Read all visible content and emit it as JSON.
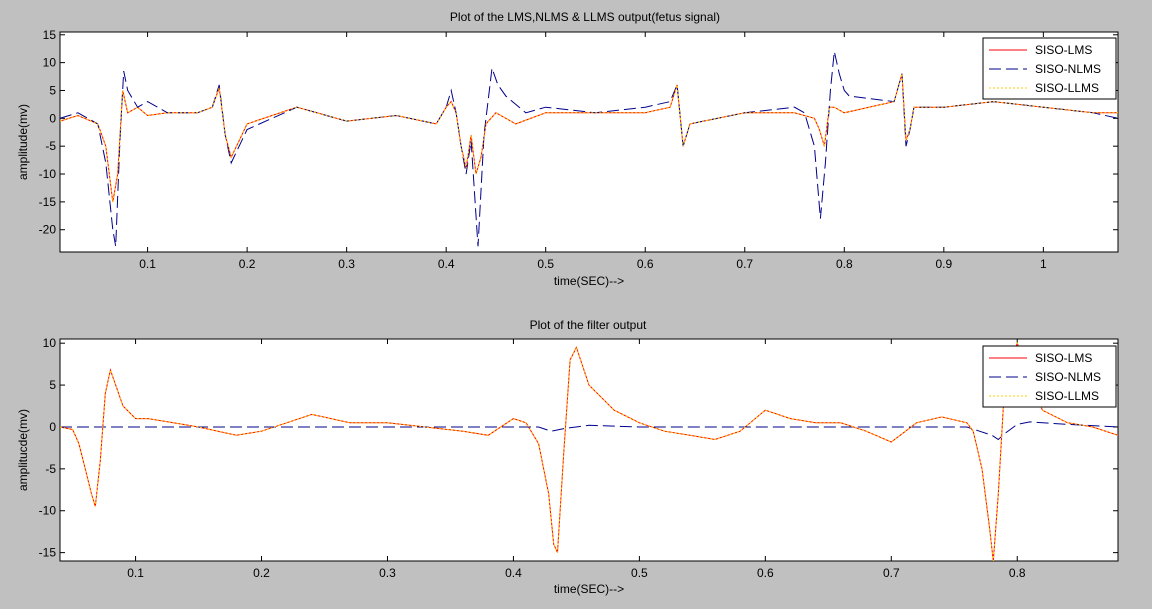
{
  "figure": {
    "background": "#c0c0c0"
  },
  "chart_data": [
    {
      "type": "line",
      "title": "Plot of the LMS,NLMS & LLMS output(fetus signal)",
      "xlabel": "time(SEC)-->",
      "ylabel": "amplitude(mv)",
      "xlim": [
        0.012,
        1.075
      ],
      "ylim": [
        -24,
        15.5
      ],
      "xticks": [
        0.1,
        0.2,
        0.3,
        0.4,
        0.5,
        0.6,
        0.7,
        0.8,
        0.9,
        1
      ],
      "xticklabels": [
        "0.1",
        "0.2",
        "0.3",
        "0.4",
        "0.5",
        "0.6",
        "0.7",
        "0.8",
        "0.9",
        "1"
      ],
      "yticks": [
        15,
        10,
        5,
        0,
        -5,
        -10,
        -15,
        -20
      ],
      "yticklabels": [
        "15",
        "10",
        "5",
        "0",
        "-5",
        "-10",
        "-15",
        "-20"
      ],
      "grid": false,
      "legend_position": "top-right",
      "series": [
        {
          "name": "SISO-LMS",
          "color": "#ff0000",
          "dash": "solid",
          "x": [
            0.012,
            0.03,
            0.05,
            0.058,
            0.065,
            0.07,
            0.075,
            0.08,
            0.09,
            0.1,
            0.12,
            0.15,
            0.165,
            0.172,
            0.178,
            0.184,
            0.2,
            0.25,
            0.3,
            0.35,
            0.39,
            0.4,
            0.405,
            0.41,
            0.415,
            0.42,
            0.425,
            0.43,
            0.435,
            0.44,
            0.45,
            0.47,
            0.5,
            0.55,
            0.6,
            0.625,
            0.632,
            0.638,
            0.645,
            0.7,
            0.75,
            0.77,
            0.775,
            0.78,
            0.785,
            0.79,
            0.8,
            0.85,
            0.858,
            0.862,
            0.866,
            0.87,
            0.9,
            0.95,
            1,
            1.05,
            1.075
          ],
          "y": [
            -0.5,
            0.5,
            -1,
            -5,
            -15,
            -10,
            5,
            1,
            2,
            0.5,
            1,
            1,
            2,
            5.5,
            -3,
            -7,
            -1,
            2,
            -0.5,
            0.5,
            -1,
            2,
            3,
            1,
            -5,
            -9,
            -3,
            -10,
            -7,
            -1,
            1,
            -1,
            1,
            1,
            1,
            2,
            6,
            -5,
            -1,
            1,
            1,
            0,
            -2,
            -5,
            2,
            2,
            1,
            3,
            8,
            -4,
            -2,
            2,
            2,
            3,
            2,
            1,
            1
          ]
        },
        {
          "name": "SISO-NLMS",
          "color": "#00008b",
          "dash": "long-dash",
          "x": [
            0.012,
            0.03,
            0.05,
            0.058,
            0.065,
            0.068,
            0.072,
            0.076,
            0.08,
            0.09,
            0.1,
            0.12,
            0.15,
            0.165,
            0.172,
            0.178,
            0.184,
            0.2,
            0.25,
            0.3,
            0.35,
            0.39,
            0.4,
            0.405,
            0.41,
            0.415,
            0.42,
            0.425,
            0.432,
            0.438,
            0.442,
            0.446,
            0.452,
            0.46,
            0.48,
            0.5,
            0.55,
            0.6,
            0.625,
            0.632,
            0.638,
            0.645,
            0.7,
            0.75,
            0.76,
            0.77,
            0.776,
            0.781,
            0.786,
            0.79,
            0.795,
            0.8,
            0.805,
            0.85,
            0.858,
            0.862,
            0.866,
            0.87,
            0.9,
            0.95,
            1,
            1.05,
            1.075
          ],
          "y": [
            0,
            1,
            -1,
            -8,
            -20,
            -23,
            -5,
            8.5,
            5,
            2,
            3,
            1,
            1,
            2,
            6,
            -3,
            -8,
            -2,
            2,
            -0.5,
            0.5,
            -1,
            2,
            5,
            1,
            -5,
            -10,
            -4,
            -23,
            -3,
            3,
            9,
            6,
            4,
            1,
            2,
            1,
            2,
            3,
            6,
            -5,
            -1,
            1,
            2,
            1,
            -5,
            -18,
            -8,
            5,
            12,
            8,
            5,
            4,
            3,
            8,
            -5,
            -2,
            2,
            2,
            3,
            2,
            1,
            0
          ]
        },
        {
          "name": "SISO-LLMS",
          "color": "#ffcc00",
          "dash": "dotted",
          "x": [
            0.012,
            0.03,
            0.05,
            0.058,
            0.065,
            0.07,
            0.075,
            0.08,
            0.09,
            0.1,
            0.12,
            0.15,
            0.165,
            0.172,
            0.178,
            0.184,
            0.2,
            0.25,
            0.3,
            0.35,
            0.39,
            0.4,
            0.405,
            0.41,
            0.415,
            0.42,
            0.425,
            0.43,
            0.435,
            0.44,
            0.45,
            0.47,
            0.5,
            0.55,
            0.6,
            0.625,
            0.632,
            0.638,
            0.645,
            0.7,
            0.75,
            0.77,
            0.775,
            0.78,
            0.785,
            0.79,
            0.8,
            0.85,
            0.858,
            0.862,
            0.866,
            0.87,
            0.9,
            0.95,
            1,
            1.05,
            1.075
          ],
          "y": [
            -0.5,
            0.5,
            -1,
            -5,
            -15,
            -10,
            5,
            1,
            2,
            0.5,
            1,
            1,
            2,
            5.5,
            -3,
            -7,
            -1,
            2,
            -0.5,
            0.5,
            -1,
            2,
            3,
            1,
            -5,
            -9,
            -3,
            -10,
            -7,
            -1,
            1,
            -1,
            1,
            1,
            1,
            2,
            6,
            -5,
            -1,
            1,
            1,
            0,
            -2,
            -5,
            2,
            2,
            1,
            3,
            8,
            -4,
            -2,
            2,
            2,
            3,
            2,
            1,
            1
          ]
        }
      ]
    },
    {
      "type": "line",
      "title": "Plot of the filter output",
      "xlabel": "time(SEC)-->",
      "ylabel": "amplitucde(mv)",
      "xlim": [
        0.04,
        0.88
      ],
      "ylim": [
        -16,
        10.5
      ],
      "xticks": [
        0.1,
        0.2,
        0.3,
        0.4,
        0.5,
        0.6,
        0.7,
        0.8
      ],
      "xticklabels": [
        "0.1",
        "0.2",
        "0.3",
        "0.4",
        "0.5",
        "0.6",
        "0.7",
        "0.8"
      ],
      "yticks": [
        10,
        5,
        0,
        -5,
        -10,
        -15
      ],
      "yticklabels": [
        "10",
        "5",
        "0",
        "-5",
        "-10",
        "-15"
      ],
      "grid": false,
      "legend_position": "top-right",
      "series": [
        {
          "name": "SISO-LMS",
          "color": "#ff0000",
          "dash": "solid",
          "x": [
            0.04,
            0.05,
            0.055,
            0.06,
            0.065,
            0.068,
            0.072,
            0.076,
            0.08,
            0.09,
            0.1,
            0.11,
            0.13,
            0.15,
            0.18,
            0.2,
            0.22,
            0.24,
            0.27,
            0.3,
            0.33,
            0.36,
            0.38,
            0.4,
            0.41,
            0.42,
            0.428,
            0.432,
            0.435,
            0.44,
            0.445,
            0.45,
            0.46,
            0.48,
            0.5,
            0.52,
            0.54,
            0.56,
            0.58,
            0.6,
            0.62,
            0.64,
            0.66,
            0.68,
            0.7,
            0.72,
            0.74,
            0.76,
            0.765,
            0.772,
            0.778,
            0.781,
            0.785,
            0.79,
            0.8,
            0.82,
            0.84,
            0.86,
            0.88
          ],
          "y": [
            0,
            -0.3,
            -2,
            -5,
            -8,
            -9.5,
            -4,
            4,
            6.8,
            2.5,
            1,
            1,
            0.5,
            0,
            -1,
            -0.5,
            0.5,
            1.5,
            0.5,
            0.5,
            0,
            -0.5,
            -1,
            1,
            0.5,
            -2,
            -8,
            -14,
            -15,
            -3,
            8,
            9.5,
            5,
            2,
            0.5,
            -0.5,
            -1,
            -1.5,
            -0.5,
            2,
            1,
            0.5,
            0.5,
            -0.5,
            -1.8,
            0.5,
            1.2,
            0.5,
            -0.5,
            -5,
            -12,
            -16,
            -8,
            5,
            10,
            2,
            0.5,
            0,
            -1
          ]
        },
        {
          "name": "SISO-NLMS",
          "color": "#00008b",
          "dash": "long-dash",
          "x": [
            0.04,
            0.1,
            0.2,
            0.3,
            0.4,
            0.42,
            0.43,
            0.44,
            0.46,
            0.5,
            0.6,
            0.7,
            0.76,
            0.77,
            0.78,
            0.785,
            0.79,
            0.8,
            0.81,
            0.84,
            0.88
          ],
          "y": [
            0,
            0,
            0,
            0,
            0,
            0,
            -0.5,
            -0.2,
            0.2,
            0,
            0,
            0,
            0,
            -0.5,
            -1,
            -1.5,
            -0.8,
            0.3,
            0.6,
            0.3,
            0
          ]
        },
        {
          "name": "SISO-LLMS",
          "color": "#ffcc00",
          "dash": "dotted",
          "x": [
            0.04,
            0.05,
            0.055,
            0.06,
            0.065,
            0.068,
            0.072,
            0.076,
            0.08,
            0.09,
            0.1,
            0.11,
            0.13,
            0.15,
            0.18,
            0.2,
            0.22,
            0.24,
            0.27,
            0.3,
            0.33,
            0.36,
            0.38,
            0.4,
            0.41,
            0.42,
            0.428,
            0.432,
            0.435,
            0.44,
            0.445,
            0.45,
            0.46,
            0.48,
            0.5,
            0.52,
            0.54,
            0.56,
            0.58,
            0.6,
            0.62,
            0.64,
            0.66,
            0.68,
            0.7,
            0.72,
            0.74,
            0.76,
            0.765,
            0.772,
            0.778,
            0.781,
            0.785,
            0.79,
            0.8,
            0.82,
            0.84,
            0.86,
            0.88
          ],
          "y": [
            0,
            -0.3,
            -2,
            -5,
            -8,
            -9.5,
            -4,
            4,
            6.8,
            2.5,
            1,
            1,
            0.5,
            0,
            -1,
            -0.5,
            0.5,
            1.5,
            0.5,
            0.5,
            0,
            -0.5,
            -1,
            1,
            0.5,
            -2,
            -8,
            -14,
            -15,
            -3,
            8,
            9.5,
            5,
            2,
            0.5,
            -0.5,
            -1,
            -1.5,
            -0.5,
            2,
            1,
            0.5,
            0.5,
            -0.5,
            -1.8,
            0.5,
            1.2,
            0.5,
            -0.5,
            -5,
            -12,
            -16,
            -8,
            5,
            10,
            2,
            0.5,
            0,
            -1
          ]
        }
      ]
    }
  ]
}
